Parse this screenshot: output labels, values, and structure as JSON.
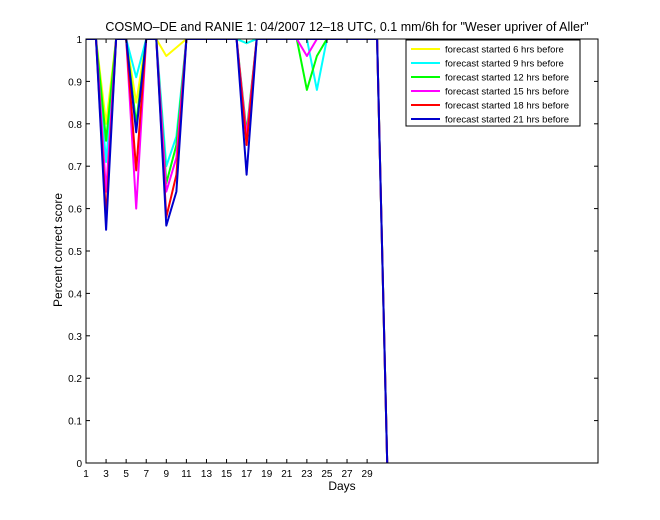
{
  "chart_data": {
    "type": "line",
    "title": "COSMO–DE and RANIE 1: 04/2007 12–18 UTC, 0.1 mm/6h for \"Weser upriver of Aller\"",
    "xlabel": "Days",
    "ylabel": "Percent correct score",
    "xlim": [
      1,
      52
    ],
    "ylim": [
      0,
      1
    ],
    "xticks": [
      1,
      3,
      5,
      7,
      9,
      11,
      13,
      15,
      17,
      19,
      21,
      23,
      25,
      27,
      29
    ],
    "yticks": [
      0,
      0.1,
      0.2,
      0.3,
      0.4,
      0.5,
      0.6,
      0.7,
      0.8,
      0.9,
      1
    ],
    "ytick_labels": [
      "0",
      "0.1",
      "0.2",
      "0.3",
      "0.4",
      "0.5",
      "0.6",
      "0.7",
      "0.8",
      "0.9",
      "1"
    ],
    "grid": false,
    "legend_position": "top-right",
    "x": [
      1,
      2,
      3,
      4,
      5,
      6,
      7,
      8,
      9,
      10,
      11,
      12,
      13,
      14,
      15,
      16,
      17,
      18,
      19,
      20,
      21,
      22,
      23,
      24,
      25,
      26,
      27,
      28,
      29,
      30,
      31
    ],
    "series": [
      {
        "name": "forecast started 6 hrs before",
        "color": "#ffff00",
        "values": [
          1,
          1,
          0.8,
          1,
          1,
          0.85,
          1,
          1,
          0.96,
          0.98,
          1,
          1,
          1,
          1,
          1,
          1,
          0.99,
          1,
          1,
          1,
          1,
          1,
          1,
          1,
          1,
          1,
          1,
          1,
          1,
          1,
          0
        ]
      },
      {
        "name": "forecast started 9 hrs before",
        "color": "#00ffff",
        "values": [
          1,
          1,
          0.71,
          1,
          1,
          0.91,
          1,
          1,
          0.7,
          0.77,
          1,
          1,
          1,
          1,
          1,
          1,
          0.99,
          1,
          1,
          1,
          1,
          1,
          1,
          0.88,
          1,
          1,
          1,
          1,
          1,
          1,
          0
        ]
      },
      {
        "name": "forecast started 12 hrs before",
        "color": "#00ff00",
        "values": [
          1,
          1,
          0.76,
          1,
          1,
          0.8,
          1,
          1,
          0.66,
          0.75,
          1,
          1,
          1,
          1,
          1,
          1,
          0.78,
          1,
          1,
          1,
          1,
          1,
          0.88,
          0.96,
          1,
          1,
          1,
          1,
          1,
          1,
          0
        ]
      },
      {
        "name": "forecast started 15 hrs before",
        "color": "#ff00ff",
        "values": [
          1,
          1,
          0.64,
          1,
          1,
          0.6,
          1,
          1,
          0.64,
          0.72,
          1,
          1,
          1,
          1,
          1,
          1,
          0.77,
          1,
          1,
          1,
          1,
          1,
          0.96,
          1,
          1,
          1,
          1,
          1,
          1,
          1,
          0
        ]
      },
      {
        "name": "forecast started 18 hrs before",
        "color": "#ff0000",
        "values": [
          1,
          1,
          0.58,
          1,
          1,
          0.69,
          1,
          1,
          0.58,
          0.68,
          1,
          1,
          1,
          1,
          1,
          1,
          0.75,
          1,
          1,
          1,
          1,
          1,
          1,
          1,
          1,
          1,
          1,
          1,
          1,
          1,
          0
        ]
      },
      {
        "name": "forecast started 21 hrs before",
        "color": "#0000cc",
        "values": [
          1,
          1,
          0.55,
          1,
          1,
          0.78,
          1,
          1,
          0.56,
          0.64,
          1,
          1,
          1,
          1,
          1,
          1,
          0.68,
          1,
          1,
          1,
          1,
          1,
          1,
          1,
          1,
          1,
          1,
          1,
          1,
          1,
          0
        ]
      }
    ]
  }
}
